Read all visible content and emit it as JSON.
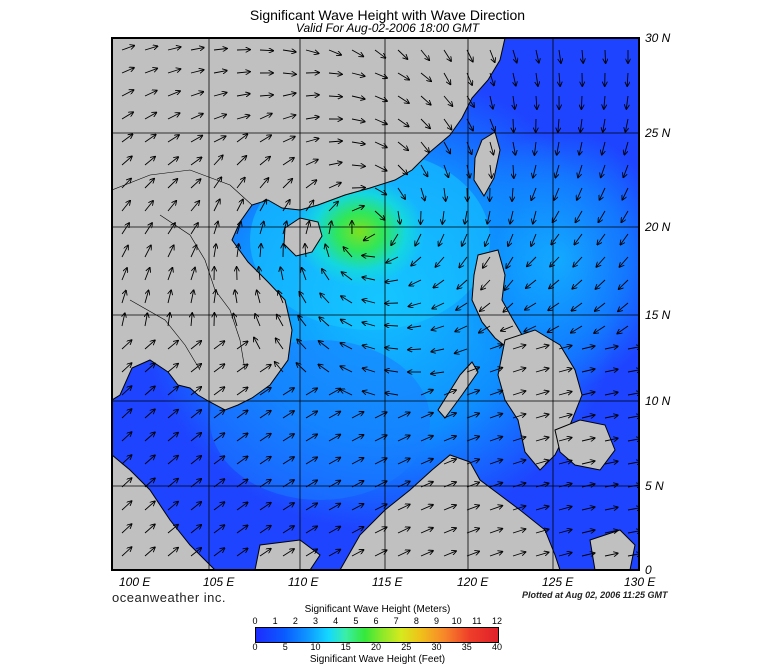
{
  "title": "Significant Wave Height with Wave Direction",
  "subtitle": "Valid For Aug-02-2006 18:00 GMT",
  "lat_labels": [
    "30 N",
    "25 N",
    "20 N",
    "15 N",
    "10 N",
    "5 N",
    "0"
  ],
  "lon_labels": [
    "100 E",
    "105 E",
    "110 E",
    "115 E",
    "120 E",
    "125 E",
    "130 E"
  ],
  "brand": "oceanweather inc.",
  "plotted": "Plotted at Aug 02, 2006 11:25 GMT",
  "colorbar": {
    "meters_title": "Significant Wave Height (Meters)",
    "feet_title": "Significant Wave Height (Feet)",
    "meters_ticks": [
      "0",
      "1",
      "2",
      "3",
      "4",
      "5",
      "6",
      "7",
      "8",
      "9",
      "10",
      "11",
      "12"
    ],
    "feet_ticks": [
      "0",
      "5",
      "10",
      "15",
      "20",
      "25",
      "30",
      "35",
      "40"
    ]
  },
  "colors": {
    "land": "#c0c0c0",
    "low_wave": "#1e3cff",
    "mid_wave": "#14c8ff",
    "peak_wave": "#40e020"
  }
}
